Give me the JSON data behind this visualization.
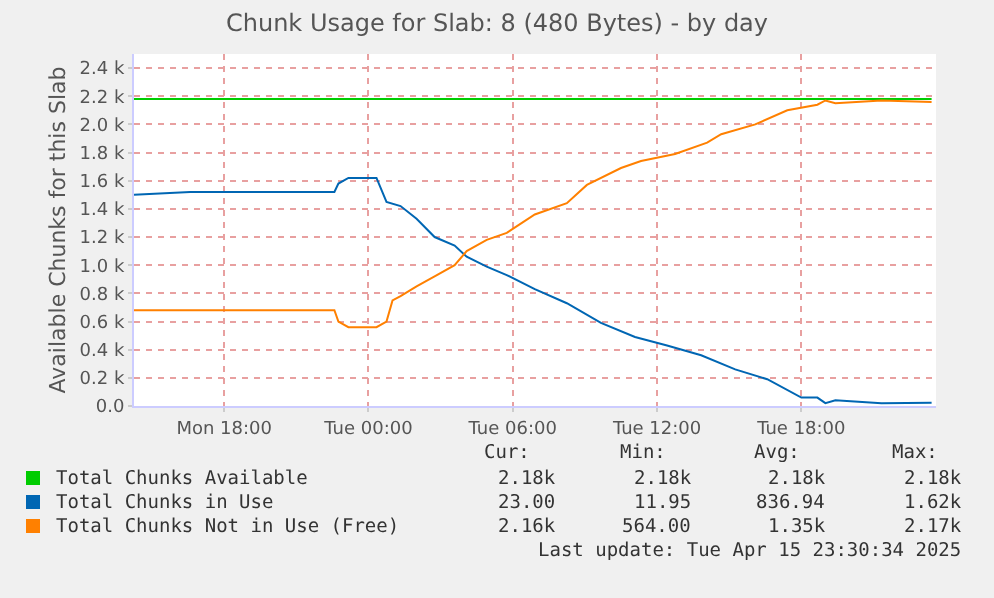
{
  "chart_data": {
    "type": "line",
    "title": "Chunk Usage for Slab: 8 (480 Bytes) - by day",
    "ylabel": "Available Chunks for this Slab",
    "xlim": [
      "2025-04-14T14:15",
      "2025-04-15T23:36"
    ],
    "xticks": [
      {
        "value": "2025-04-14T18:00",
        "label": "Mon 18:00"
      },
      {
        "value": "2025-04-15T00:00",
        "label": "Tue 00:00"
      },
      {
        "value": "2025-04-15T06:00",
        "label": "Tue 06:00"
      },
      {
        "value": "2025-04-15T12:00",
        "label": "Tue 12:00"
      },
      {
        "value": "2025-04-15T18:00",
        "label": "Tue 18:00"
      }
    ],
    "ylim": [
      0,
      2500
    ],
    "yticks": [
      {
        "value": 0,
        "label": "0.0"
      },
      {
        "value": 200,
        "label": "0.2 k"
      },
      {
        "value": 400,
        "label": "0.4 k"
      },
      {
        "value": 600,
        "label": "0.6 k"
      },
      {
        "value": 800,
        "label": "0.8 k"
      },
      {
        "value": 1000,
        "label": "1.0 k"
      },
      {
        "value": 1200,
        "label": "1.2 k"
      },
      {
        "value": 1400,
        "label": "1.4 k"
      },
      {
        "value": 1600,
        "label": "1.6 k"
      },
      {
        "value": 1800,
        "label": "1.8 k"
      },
      {
        "value": 2000,
        "label": "2.0 k"
      },
      {
        "value": 2200,
        "label": "2.2 k"
      },
      {
        "value": 2400,
        "label": "2.4 k"
      }
    ],
    "grid": true,
    "legend": "bottom",
    "marker": "none",
    "line_style": "solid",
    "series": [
      {
        "name": "Total Chunks Available",
        "color": "#00cc00",
        "x": [
          "2025-04-14T14:15",
          "2025-04-15T23:25"
        ],
        "values": [
          2180,
          2180
        ]
      },
      {
        "name": "Total Chunks in Use",
        "color": "#0066b3",
        "x": [
          "2025-04-14T14:15",
          "2025-04-14T16:35",
          "2025-04-14T22:35",
          "2025-04-14T22:45",
          "2025-04-14T23:10",
          "2025-04-15T00:20",
          "2025-04-15T00:45",
          "2025-04-15T01:20",
          "2025-04-15T02:00",
          "2025-04-15T02:45",
          "2025-04-15T03:35",
          "2025-04-15T04:05",
          "2025-04-15T04:55",
          "2025-04-15T05:45",
          "2025-04-15T06:55",
          "2025-04-15T08:15",
          "2025-04-15T09:40",
          "2025-04-15T11:05",
          "2025-04-15T12:25",
          "2025-04-15T13:50",
          "2025-04-15T15:15",
          "2025-04-15T16:35",
          "2025-04-15T18:00",
          "2025-04-15T18:40",
          "2025-04-15T19:00",
          "2025-04-15T19:25",
          "2025-04-15T21:20",
          "2025-04-15T23:25"
        ],
        "values": [
          1500,
          1520,
          1520,
          1580,
          1620,
          1620,
          1450,
          1420,
          1330,
          1200,
          1140,
          1060,
          990,
          930,
          830,
          730,
          590,
          490,
          430,
          360,
          260,
          190,
          60,
          60,
          20,
          40,
          20,
          23
        ]
      },
      {
        "name": "Total Chunks Not in Use (Free)",
        "color": "#ff8000",
        "x": [
          "2025-04-14T14:15",
          "2025-04-14T22:35",
          "2025-04-14T22:45",
          "2025-04-14T23:10",
          "2025-04-15T00:20",
          "2025-04-15T00:45",
          "2025-04-15T01:00",
          "2025-04-15T01:20",
          "2025-04-15T02:00",
          "2025-04-15T02:45",
          "2025-04-15T03:35",
          "2025-04-15T04:05",
          "2025-04-15T04:55",
          "2025-04-15T05:45",
          "2025-04-15T06:55",
          "2025-04-15T08:15",
          "2025-04-15T09:05",
          "2025-04-15T10:30",
          "2025-04-15T11:20",
          "2025-04-15T12:45",
          "2025-04-15T14:05",
          "2025-04-15T14:40",
          "2025-04-15T16:05",
          "2025-04-15T17:25",
          "2025-04-15T18:40",
          "2025-04-15T19:00",
          "2025-04-15T19:25",
          "2025-04-15T21:20",
          "2025-04-15T23:25"
        ],
        "values": [
          680,
          680,
          600,
          560,
          560,
          600,
          750,
          780,
          850,
          920,
          1000,
          1100,
          1180,
          1230,
          1360,
          1440,
          1570,
          1690,
          1740,
          1790,
          1870,
          1930,
          2000,
          2100,
          2140,
          2170,
          2150,
          2170,
          2160
        ]
      }
    ],
    "annotations": [
      "Cur:",
      "Min:",
      "Avg:",
      "Max:",
      "2.18k",
      "2.18k",
      "2.18k",
      "2.18k",
      "23.00",
      "11.95",
      "836.94",
      "1.62k",
      "2.16k",
      "564.00",
      "1.35k",
      "2.17k",
      "Last update: Tue Apr 15 23:30:34 2025"
    ]
  }
}
